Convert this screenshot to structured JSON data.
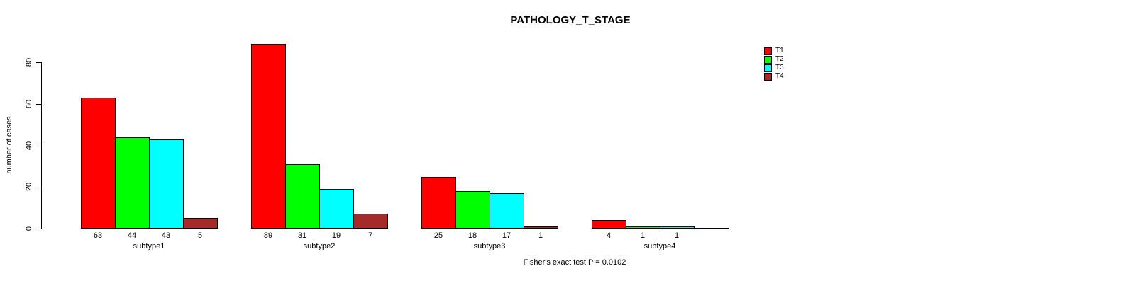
{
  "title": "PATHOLOGY_T_STAGE",
  "ylabel": "number of cases",
  "footer": "Fisher's exact test P = 0.0102",
  "chart_data": {
    "type": "bar",
    "title": "PATHOLOGY_T_STAGE",
    "xlabel": "",
    "ylabel": "number of cases",
    "categories": [
      "subtype1",
      "subtype2",
      "subtype3",
      "subtype4"
    ],
    "series": [
      {
        "name": "T1",
        "color": "#FF0000",
        "values": [
          63,
          89,
          25,
          4
        ]
      },
      {
        "name": "T2",
        "color": "#00FF00",
        "values": [
          44,
          31,
          18,
          1
        ]
      },
      {
        "name": "T3",
        "color": "#00FFFF",
        "values": [
          43,
          19,
          17,
          1
        ]
      },
      {
        "name": "T4",
        "color": "#A52A2A",
        "values": [
          5,
          7,
          1,
          0
        ]
      }
    ],
    "yticks": [
      0,
      20,
      40,
      60,
      80
    ],
    "ylim": [
      0,
      89
    ],
    "grid": false,
    "legend_position": "top-right",
    "bar_value_labels_shown": true,
    "annotation": "Fisher's exact test P = 0.0102"
  }
}
